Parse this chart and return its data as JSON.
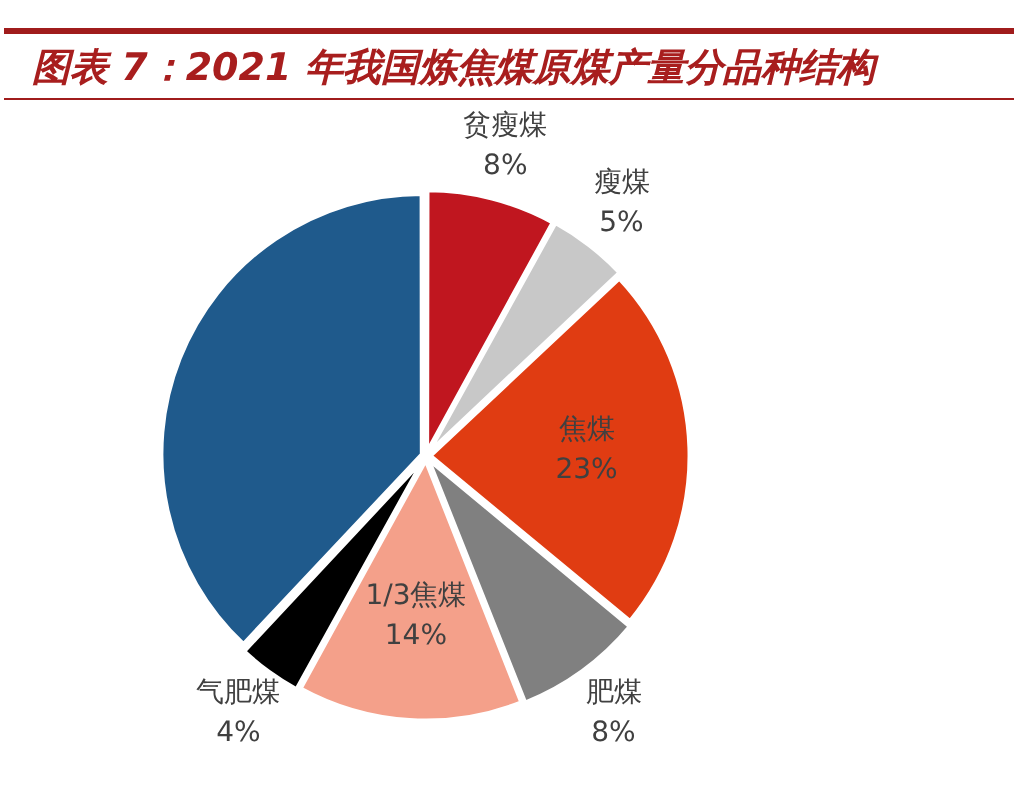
{
  "chart_data": {
    "type": "pie",
    "title": "图表 7：2021 年我国炼焦煤原煤产量分品种结构",
    "categories": [
      "贫瘦煤",
      "瘦煤",
      "焦煤",
      "肥煤",
      "1/3焦煤",
      "气肥煤",
      null
    ],
    "values": [
      8,
      5,
      23,
      8,
      14,
      4,
      38
    ],
    "value_labels": [
      "8%",
      "5%",
      "23%",
      "8%",
      "14%",
      "4%",
      null
    ],
    "colors": [
      "#c0161f",
      "#c8c8c8",
      "#e03c12",
      "#808080",
      "#f4a08a",
      "#000000",
      "#1f5a8c"
    ],
    "legend": false
  }
}
